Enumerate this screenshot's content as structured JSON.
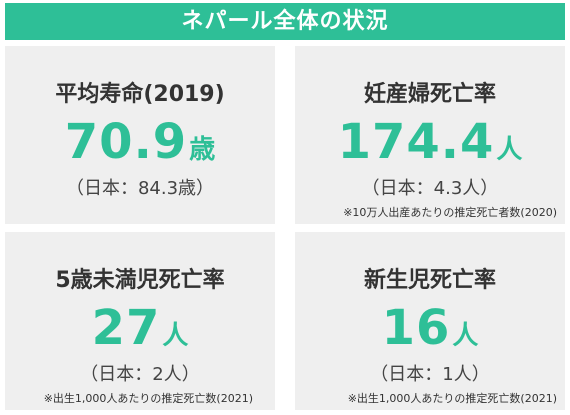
{
  "banner": {
    "title": "ネパール全体の状況"
  },
  "colors": {
    "accent": "#2ebf97",
    "card_bg": "#efefef",
    "text": "#333333"
  },
  "cards": [
    {
      "title": "平均寿命(2019)",
      "value": "70.9",
      "unit": "歳",
      "comparison": "（日本：84.3歳）",
      "note": ""
    },
    {
      "title": "妊産婦死亡率",
      "value": "174.4",
      "unit": "人",
      "comparison": "（日本：4.3人）",
      "note": "※10万人出産あたりの推定死亡者数(2020)"
    },
    {
      "title": "5歳未満児死亡率",
      "value": "27",
      "unit": "人",
      "comparison": "（日本：2人）",
      "note": "※出生1,000人あたりの推定死亡数(2021)"
    },
    {
      "title": "新生児死亡率",
      "value": "16",
      "unit": "人",
      "comparison": "（日本：1人）",
      "note": "※出生1,000人あたりの推定死亡数(2021)"
    }
  ]
}
